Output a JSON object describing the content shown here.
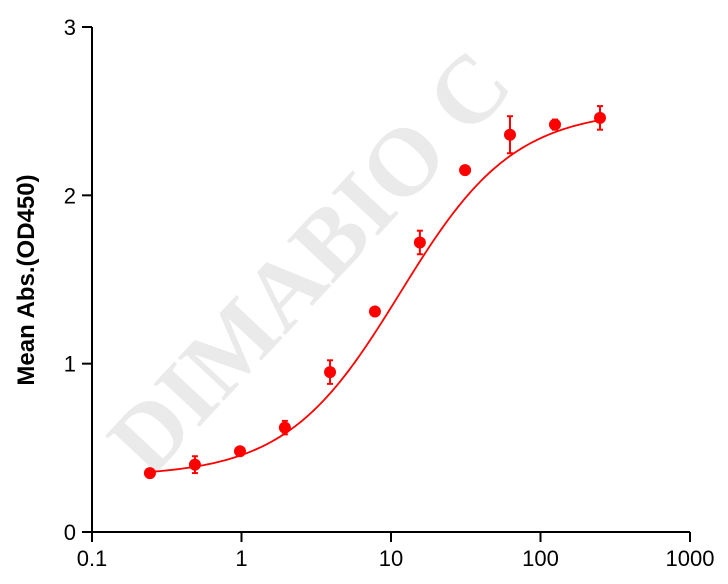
{
  "watermark": "DIMABIO C",
  "chart_data": {
    "type": "scatter",
    "title": "",
    "xlabel": "",
    "ylabel": "Mean Abs.(OD450)",
    "x_scale": "log",
    "xlim": [
      0.1,
      1000
    ],
    "ylim": [
      0,
      3
    ],
    "x_ticks": [
      0.1,
      1,
      10,
      100,
      1000
    ],
    "x_tick_labels": [
      "0.1",
      "1",
      "10",
      "100",
      "1000"
    ],
    "y_ticks": [
      0,
      1,
      2,
      3
    ],
    "y_tick_labels": [
      "0",
      "1",
      "2",
      "3"
    ],
    "grid": false,
    "legend": "none",
    "color": "#ff0000",
    "series": [
      {
        "points": [
          {
            "x": 0.244,
            "y": 0.35,
            "err": 0.02
          },
          {
            "x": 0.488,
            "y": 0.4,
            "err": 0.05
          },
          {
            "x": 0.977,
            "y": 0.48,
            "err": 0.02
          },
          {
            "x": 1.95,
            "y": 0.62,
            "err": 0.04
          },
          {
            "x": 3.91,
            "y": 0.95,
            "err": 0.07
          },
          {
            "x": 7.81,
            "y": 1.31,
            "err": 0.02
          },
          {
            "x": 15.6,
            "y": 1.72,
            "err": 0.07
          },
          {
            "x": 31.3,
            "y": 2.15,
            "err": 0.02
          },
          {
            "x": 62.5,
            "y": 2.36,
            "err": 0.11
          },
          {
            "x": 125,
            "y": 2.42,
            "err": 0.03
          },
          {
            "x": 250,
            "y": 2.46,
            "err": 0.07
          }
        ],
        "fit": {
          "type": "4PL",
          "bottom": 0.33,
          "top": 2.51,
          "ec50": 11.5,
          "hill": 1.14
        }
      }
    ]
  }
}
